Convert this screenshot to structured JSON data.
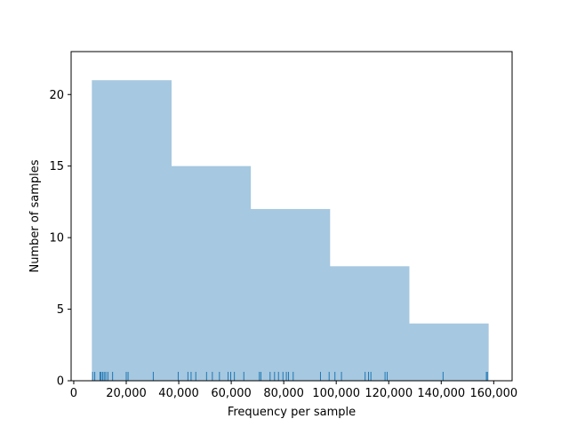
{
  "chart_data": {
    "type": "bar",
    "subtype": "histogram-with-rug",
    "title": "",
    "xlabel": "Frequency per sample",
    "ylabel": "Number of samples",
    "xlim": [
      -1000,
      167000
    ],
    "ylim": [
      0,
      23
    ],
    "x_ticks": [
      {
        "value": 0,
        "label": "0"
      },
      {
        "value": 20000,
        "label": "20,000"
      },
      {
        "value": 40000,
        "label": "40,000"
      },
      {
        "value": 60000,
        "label": "60,000"
      },
      {
        "value": 80000,
        "label": "80,000"
      },
      {
        "value": 100000,
        "label": "100,000"
      },
      {
        "value": 120000,
        "label": "120,000"
      },
      {
        "value": 140000,
        "label": "140,000"
      },
      {
        "value": 160000,
        "label": "160,000"
      }
    ],
    "y_ticks": [
      {
        "value": 0,
        "label": "0"
      },
      {
        "value": 5,
        "label": "5"
      },
      {
        "value": 10,
        "label": "10"
      },
      {
        "value": 15,
        "label": "15"
      },
      {
        "value": 20,
        "label": "20"
      }
    ],
    "bins": [
      {
        "start": 6900,
        "end": 37100,
        "count": 21
      },
      {
        "start": 37100,
        "end": 67300,
        "count": 15
      },
      {
        "start": 67300,
        "end": 97500,
        "count": 12
      },
      {
        "start": 97500,
        "end": 127700,
        "count": 8
      },
      {
        "start": 127700,
        "end": 157900,
        "count": 4
      }
    ],
    "rug": [
      7200,
      8000,
      10000,
      10400,
      11000,
      11600,
      12200,
      13000,
      14800,
      20000,
      20700,
      30300,
      39800,
      43500,
      44700,
      46500,
      50600,
      52800,
      55500,
      58800,
      59800,
      61200,
      64800,
      70700,
      71300,
      74800,
      76500,
      78000,
      79700,
      81000,
      81800,
      83600,
      94000,
      97300,
      99500,
      102000,
      111000,
      112300,
      113200,
      118600,
      119400,
      140700,
      157200,
      157600
    ],
    "bar_color": "#a6c8e0",
    "rug_color": "#1f77b4",
    "grid": false,
    "legend": "none"
  }
}
